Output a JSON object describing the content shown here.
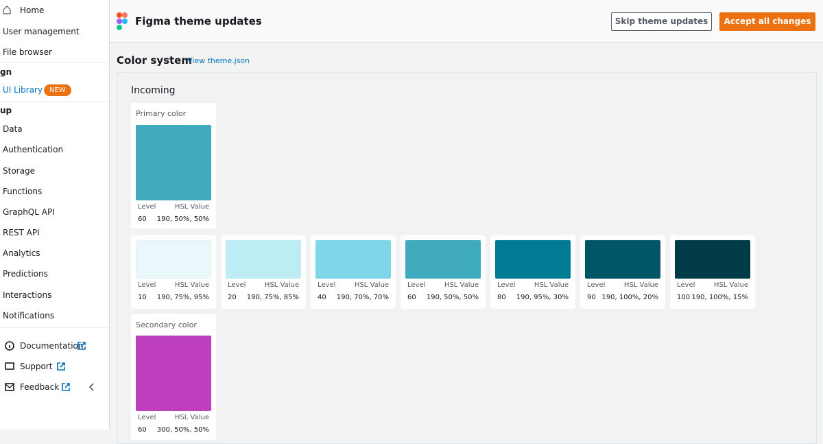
{
  "sidebar": {
    "top_items": [
      "Home",
      "User management",
      "File browser"
    ],
    "design_header": "gn",
    "ui_library": "UI Library",
    "badge": "NEW",
    "setup_header": "up",
    "setup_items": [
      "Data",
      "Authentication",
      "Storage",
      "Functions",
      "GraphQL API",
      "REST API",
      "Analytics",
      "Predictions",
      "Interactions",
      "Notifications"
    ],
    "footer_items": [
      "Documentation",
      "Support",
      "Feedback"
    ]
  },
  "header": {
    "title": "Figma theme updates",
    "skip_button": "Skip theme updates",
    "accept_button": "Accept all changes"
  },
  "content": {
    "heading": "Color system",
    "link": "View theme.json",
    "panel_title": "Incoming",
    "primary": {
      "label": "Primary color",
      "level_label": "Level",
      "hsl_label": "HSL Value",
      "level": 60,
      "hsl": "190, 50%, 50%",
      "color": "#40aabf"
    },
    "shades": [
      {
        "level_label": "Level",
        "hsl_label": "HSL Value",
        "level": 10,
        "hsl": "190, 75%, 95%",
        "color": "#eaf7fb"
      },
      {
        "level_label": "Level",
        "hsl_label": "HSL Value",
        "level": 20,
        "hsl": "190, 75%, 85%",
        "color": "#bdecf5"
      },
      {
        "level_label": "Level",
        "hsl_label": "HSL Value",
        "level": 40,
        "hsl": "190, 70%, 70%",
        "color": "#7ed6e8"
      },
      {
        "level_label": "Level",
        "hsl_label": "HSL Value",
        "level": 60,
        "hsl": "190, 50%, 50%",
        "color": "#40aabf"
      },
      {
        "level_label": "Level",
        "hsl_label": "HSL Value",
        "level": 80,
        "hsl": "190, 95%, 30%",
        "color": "#007b94"
      },
      {
        "level_label": "Level",
        "hsl_label": "HSL Value",
        "level": 90,
        "hsl": "190, 100%, 20%",
        "color": "#005566"
      },
      {
        "level_label": "Level",
        "hsl_label": "HSL Value",
        "level": 100,
        "hsl": "190, 100%, 15%",
        "color": "#003b47"
      }
    ],
    "secondary": {
      "label": "Secondary color",
      "level_label": "Level",
      "hsl_label": "HSL Value",
      "level": 60,
      "hsl": "300, 50%, 50%",
      "color": "#bf40bf"
    }
  }
}
